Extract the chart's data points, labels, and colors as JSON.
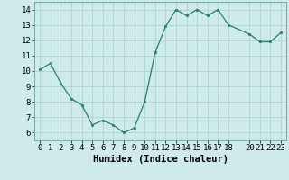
{
  "x": [
    0,
    1,
    2,
    3,
    4,
    5,
    6,
    7,
    8,
    9,
    10,
    11,
    12,
    13,
    14,
    15,
    16,
    17,
    18,
    20,
    21,
    22,
    23
  ],
  "y": [
    10.1,
    10.5,
    9.2,
    8.2,
    7.8,
    6.5,
    6.8,
    6.5,
    6.0,
    6.3,
    8.0,
    11.2,
    12.9,
    14.0,
    13.6,
    14.0,
    13.6,
    14.0,
    13.0,
    12.4,
    11.9,
    11.9,
    12.5
  ],
  "line_color": "#2a7d6e",
  "marker_color": "#2a7d6e",
  "bg_color": "#ceeaea",
  "grid_color": "#a8cece",
  "xlabel": "Humidex (Indice chaleur)",
  "xlim": [
    -0.5,
    23.5
  ],
  "ylim": [
    5.5,
    14.5
  ],
  "yticks": [
    6,
    7,
    8,
    9,
    10,
    11,
    12,
    13,
    14
  ],
  "xticks": [
    0,
    1,
    2,
    3,
    4,
    5,
    6,
    7,
    8,
    9,
    10,
    11,
    12,
    13,
    14,
    15,
    16,
    17,
    18,
    20,
    21,
    22,
    23
  ],
  "tick_fontsize": 6.5,
  "label_fontsize": 7.5
}
